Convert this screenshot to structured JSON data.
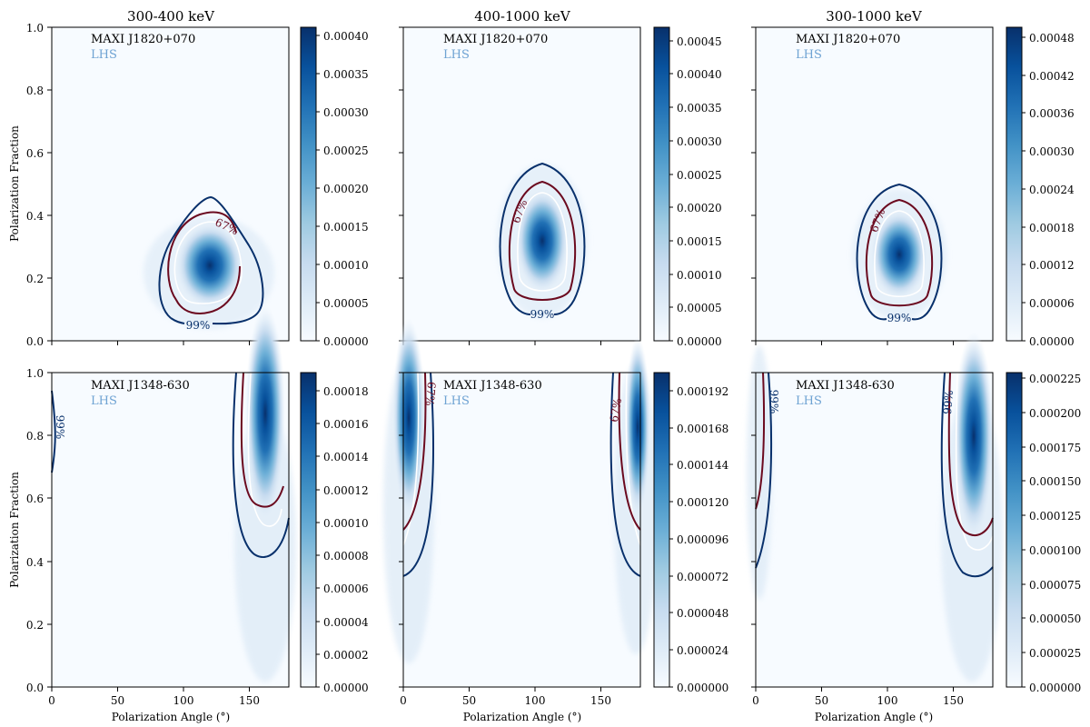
{
  "figure": {
    "colormap": "Blues",
    "contour_colors": {
      "c67": "#6b0a1f",
      "c99": "#08306b",
      "inner_white": "#ffffff"
    },
    "label_color_lhs": "#6fa3d3"
  },
  "chart_data": [
    {
      "type": "heatmap",
      "title": "300-400 keV",
      "xlabel": "",
      "ylabel": "Polarization Fraction",
      "xlim": [
        0,
        180
      ],
      "ylim": [
        0,
        1.0
      ],
      "xticks": [
        "0",
        "50",
        "100",
        "150"
      ],
      "yticks": [
        "0.0",
        "0.2",
        "0.4",
        "0.6",
        "0.8",
        "1.0"
      ],
      "source": "MAXI J1820+070",
      "state": "LHS",
      "peak": {
        "angle": 121,
        "fraction": 0.23
      },
      "contours": [
        {
          "level": "67%",
          "label_at": {
            "angle": 130,
            "fraction": 0.36
          }
        },
        {
          "level": "99%",
          "label_at": {
            "angle": 112,
            "fraction": 0.05
          }
        }
      ],
      "colorbar": {
        "min": 0.0,
        "max": 0.00041,
        "ticks": [
          "0.00000",
          "0.00005",
          "0.00010",
          "0.00015",
          "0.00020",
          "0.00025",
          "0.00030",
          "0.00035",
          "0.00040"
        ]
      }
    },
    {
      "type": "heatmap",
      "title": "400-1000 keV",
      "xlabel": "",
      "ylabel": "",
      "xlim": [
        0,
        180
      ],
      "ylim": [
        0,
        1.0
      ],
      "xticks": [
        "0",
        "50",
        "100",
        "150"
      ],
      "yticks": [
        "0.0",
        "0.2",
        "0.4",
        "0.6",
        "0.8",
        "1.0"
      ],
      "source": "MAXI J1820+070",
      "state": "LHS",
      "peak": {
        "angle": 105,
        "fraction": 0.32
      },
      "contours": [
        {
          "level": "67%",
          "label_at": {
            "angle": 92,
            "fraction": 0.41
          }
        },
        {
          "level": "99%",
          "label_at": {
            "angle": 105,
            "fraction": 0.09
          }
        }
      ],
      "colorbar": {
        "min": 0.0,
        "max": 0.00047,
        "ticks": [
          "0.00000",
          "0.00005",
          "0.00010",
          "0.00015",
          "0.00020",
          "0.00025",
          "0.00030",
          "0.00035",
          "0.00040",
          "0.00045"
        ]
      }
    },
    {
      "type": "heatmap",
      "title": "300-1000 keV",
      "xlabel": "",
      "ylabel": "",
      "xlim": [
        0,
        180
      ],
      "ylim": [
        0,
        1.0
      ],
      "xticks": [
        "0",
        "50",
        "100",
        "150"
      ],
      "yticks": [
        "0.0",
        "0.2",
        "0.4",
        "0.6",
        "0.8",
        "1.0"
      ],
      "source": "MAXI J1820+070",
      "state": "LHS",
      "peak": {
        "angle": 110,
        "fraction": 0.27
      },
      "contours": [
        {
          "level": "67%",
          "label_at": {
            "angle": 94,
            "fraction": 0.38
          }
        },
        {
          "level": "99%",
          "label_at": {
            "angle": 108,
            "fraction": 0.07
          }
        }
      ],
      "colorbar": {
        "min": 0.0,
        "max": 0.000495,
        "ticks": [
          "0.00000",
          "0.00006",
          "0.00012",
          "0.00018",
          "0.00024",
          "0.00030",
          "0.00036",
          "0.00042",
          "0.00048"
        ]
      }
    },
    {
      "type": "heatmap",
      "title": "",
      "xlabel": "Polarization Angle (°)",
      "ylabel": "Polarization Fraction",
      "xlim": [
        0,
        180
      ],
      "ylim": [
        0,
        1.0
      ],
      "xticks": [
        "0",
        "50",
        "100",
        "150"
      ],
      "yticks": [
        "0.0",
        "0.2",
        "0.4",
        "0.6",
        "0.8",
        "1.0"
      ],
      "source": "MAXI J1348-630",
      "state": "LHS",
      "peak": {
        "angle": 162,
        "fraction": 0.9
      },
      "contours": [
        {
          "level": "99%",
          "label_at": {
            "angle": 2,
            "fraction": 0.83
          }
        }
      ],
      "colorbar": {
        "min": 0.0,
        "max": 0.000191,
        "ticks": [
          "0.00000",
          "0.00002",
          "0.00004",
          "0.00006",
          "0.00008",
          "0.00010",
          "0.00012",
          "0.00014",
          "0.00016",
          "0.00018"
        ]
      }
    },
    {
      "type": "heatmap",
      "title": "",
      "xlabel": "Polarization Angle (°)",
      "ylabel": "",
      "xlim": [
        0,
        180
      ],
      "ylim": [
        0,
        1.0
      ],
      "xticks": [
        "0",
        "50",
        "100",
        "150"
      ],
      "yticks": [
        "0.0",
        "0.2",
        "0.4",
        "0.6",
        "0.8",
        "1.0"
      ],
      "source": "MAXI J1348-630",
      "state": "LHS",
      "peak": {
        "angle": 4,
        "fraction": 0.88
      },
      "contours": [
        {
          "level": "67%",
          "label_at": {
            "angle": 16,
            "fraction": 0.93
          }
        },
        {
          "level": "67%",
          "label_at": {
            "angle": 164,
            "fraction": 0.88
          }
        }
      ],
      "colorbar": {
        "min": 0.0,
        "max": 0.000204,
        "ticks": [
          "0.000000",
          "0.000024",
          "0.000048",
          "0.000072",
          "0.000096",
          "0.000120",
          "0.000144",
          "0.000168",
          "0.000192"
        ]
      }
    },
    {
      "type": "heatmap",
      "title": "",
      "xlabel": "Polarization Angle (°)",
      "ylabel": "",
      "xlim": [
        0,
        180
      ],
      "ylim": [
        0,
        1.0
      ],
      "xticks": [
        "0",
        "50",
        "100",
        "150"
      ],
      "yticks": [
        "0.0",
        "0.2",
        "0.4",
        "0.6",
        "0.8",
        "1.0"
      ],
      "source": "MAXI J1348-630",
      "state": "LHS",
      "peak": {
        "angle": 168,
        "fraction": 0.85
      },
      "contours": [
        {
          "level": "99%",
          "label_at": {
            "angle": 10,
            "fraction": 0.91
          }
        },
        {
          "level": "99%",
          "label_at": {
            "angle": 150,
            "fraction": 0.91
          }
        }
      ],
      "colorbar": {
        "min": 0.0,
        "max": 0.000229,
        "ticks": [
          "0.000000",
          "0.000025",
          "0.000050",
          "0.000075",
          "0.000100",
          "0.000125",
          "0.000150",
          "0.000175",
          "0.000200",
          "0.000225"
        ]
      }
    }
  ]
}
